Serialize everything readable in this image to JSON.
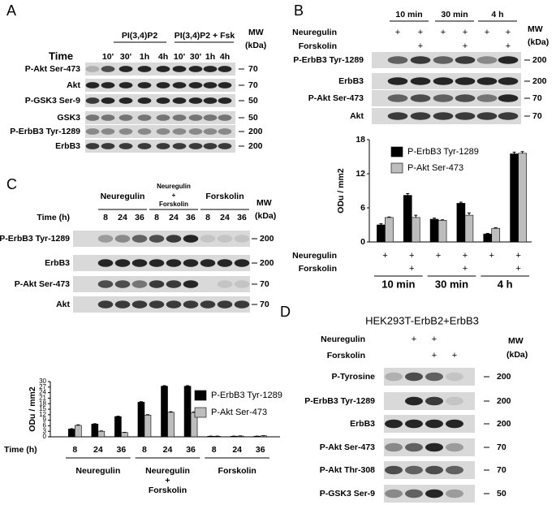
{
  "panel_a": {
    "label": "A",
    "groups": [
      "PI(3,4)P2",
      "PI(3,4)P2 + Fsk"
    ],
    "time_label": "Time",
    "times": [
      "10'",
      "30'",
      "1h",
      "4h",
      "10'",
      "30'",
      "1h",
      "4h"
    ],
    "mw_label": "MW",
    "mw_unit": "(kDa)",
    "rows": [
      {
        "name": "P-Akt Ser-473",
        "mw": 70
      },
      {
        "name": "Akt",
        "mw": 70
      },
      {
        "name": "P-GSK3 Ser-9",
        "mw": 50
      },
      {
        "name": "GSK3",
        "mw": 50
      },
      {
        "name": "P-ErbB3 Tyr-1289",
        "mw": 200
      },
      {
        "name": "ErbB3",
        "mw": 200
      }
    ]
  },
  "panel_b": {
    "label": "B",
    "times": [
      "10 min",
      "30 min",
      "4 h"
    ],
    "treatments": [
      {
        "name": "Neuregulin",
        "marks": [
          "+",
          "+",
          "+",
          "+",
          "+",
          "+"
        ]
      },
      {
        "name": "Forskolin",
        "marks": [
          null,
          "+",
          null,
          "+",
          null,
          "+"
        ]
      }
    ],
    "mw_label": "MW",
    "mw_unit": "(kDa)",
    "rows": [
      {
        "name": "P-ErbB3 Tyr-1289",
        "mw": 200
      },
      {
        "name": "ErbB3",
        "mw": 200
      },
      {
        "name": "P-Akt Ser-473",
        "mw": 70
      },
      {
        "name": "Akt",
        "mw": 70
      }
    ]
  },
  "panel_c": {
    "label": "C",
    "groups": [
      [
        "Neuregulin"
      ],
      [
        "Neuregulin",
        "+",
        "Forskolin"
      ],
      [
        "Forskolin"
      ]
    ],
    "time_label": "Time (h)",
    "times": [
      8,
      24,
      36,
      8,
      24,
      36,
      8,
      24,
      36
    ],
    "mw_label": "MW",
    "mw_unit": "(kDa)",
    "rows": [
      {
        "name": "P-ErbB3 Tyr-1289",
        "mw": 200
      },
      {
        "name": "ErbB3",
        "mw": 200
      },
      {
        "name": "P-Akt Ser-473",
        "mw": 70
      },
      {
        "name": "Akt",
        "mw": 70
      }
    ]
  },
  "panel_d": {
    "label": "D",
    "title": "HEK293T-ErbB2+ErbB3",
    "treatments": [
      {
        "name": "Neuregulin",
        "marks": [
          null,
          "+",
          "+",
          null
        ]
      },
      {
        "name": "Forskolin",
        "marks": [
          null,
          null,
          "+",
          "+"
        ]
      }
    ],
    "mw_label": "MW",
    "mw_unit": "(kDa)",
    "rows": [
      {
        "name": "P-Tyrosine",
        "mw": 200
      },
      {
        "name": "P-ErbB3 Tyr-1289",
        "mw": 200
      },
      {
        "name": "ErbB3",
        "mw": 200
      },
      {
        "name": "P-Akt Ser-473",
        "mw": 70
      },
      {
        "name": "P-Akt Thr-308",
        "mw": 70
      },
      {
        "name": "P-GSK3 Ser-9",
        "mw": 50
      }
    ]
  },
  "chart_data": [
    {
      "type": "bar",
      "ylabel": "ODu / mm2",
      "ylim": [
        0,
        18
      ],
      "yticks": [
        0,
        6,
        12,
        18
      ],
      "legend": "upper left",
      "categories": [
        null,
        null,
        null,
        null,
        null,
        null
      ],
      "series": [
        {
          "name": "P-ErbB3 Tyr-1289",
          "color": "#000000",
          "values": [
            3.0,
            8.2,
            4.0,
            6.8,
            1.4,
            15.5
          ],
          "errors": [
            0.2,
            0.3,
            0.2,
            0.2,
            0.1,
            0.3
          ]
        },
        {
          "name": "P-Akt Ser-473",
          "color": "#bdbdbd",
          "values": [
            4.3,
            4.3,
            3.8,
            4.7,
            2.4,
            15.6
          ],
          "errors": [
            0.1,
            0.4,
            0.1,
            0.4,
            0.1,
            0.3
          ]
        }
      ],
      "x_rows": [
        {
          "name": "Neuregulin",
          "marks": [
            "+",
            "+",
            "+",
            "+",
            "+",
            "+"
          ]
        },
        {
          "name": "Forskolin",
          "marks": [
            null,
            "+",
            null,
            "+",
            null,
            "+"
          ]
        }
      ],
      "groups": [
        "10 min",
        "30 min",
        "4 h"
      ]
    },
    {
      "type": "bar",
      "ylabel": "ODu / mm2",
      "xlabel": "Time (h)",
      "ylim": [
        0,
        30
      ],
      "yticks": [
        0,
        3,
        6,
        9,
        12,
        15,
        18,
        21,
        24,
        27,
        30
      ],
      "legend": "upper right",
      "categories": [
        8,
        24,
        36,
        8,
        24,
        36,
        8,
        24,
        36
      ],
      "series": [
        {
          "name": "P-ErbB3 Tyr-1289",
          "color": "#000000",
          "values": [
            4.2,
            6.9,
            11.0,
            18.8,
            27.5,
            27.5,
            0.3,
            0.3,
            0.3
          ],
          "errors": [
            0.2,
            0.2,
            0.2,
            0.3,
            0.3,
            0.3,
            0.1,
            0.1,
            0.1
          ]
        },
        {
          "name": "P-Akt Ser-473",
          "color": "#bdbdbd",
          "values": [
            6.2,
            3.0,
            2.3,
            11.8,
            13.3,
            13.2,
            0.3,
            0.4,
            0.5
          ],
          "errors": [
            0.3,
            0.2,
            0.1,
            0.2,
            0.3,
            0.3,
            0.1,
            0.1,
            0.1
          ]
        }
      ],
      "groups": [
        [
          "Neuregulin"
        ],
        [
          "Neuregulin",
          "+",
          "Forskolin"
        ],
        [
          "Forskolin"
        ]
      ]
    }
  ]
}
